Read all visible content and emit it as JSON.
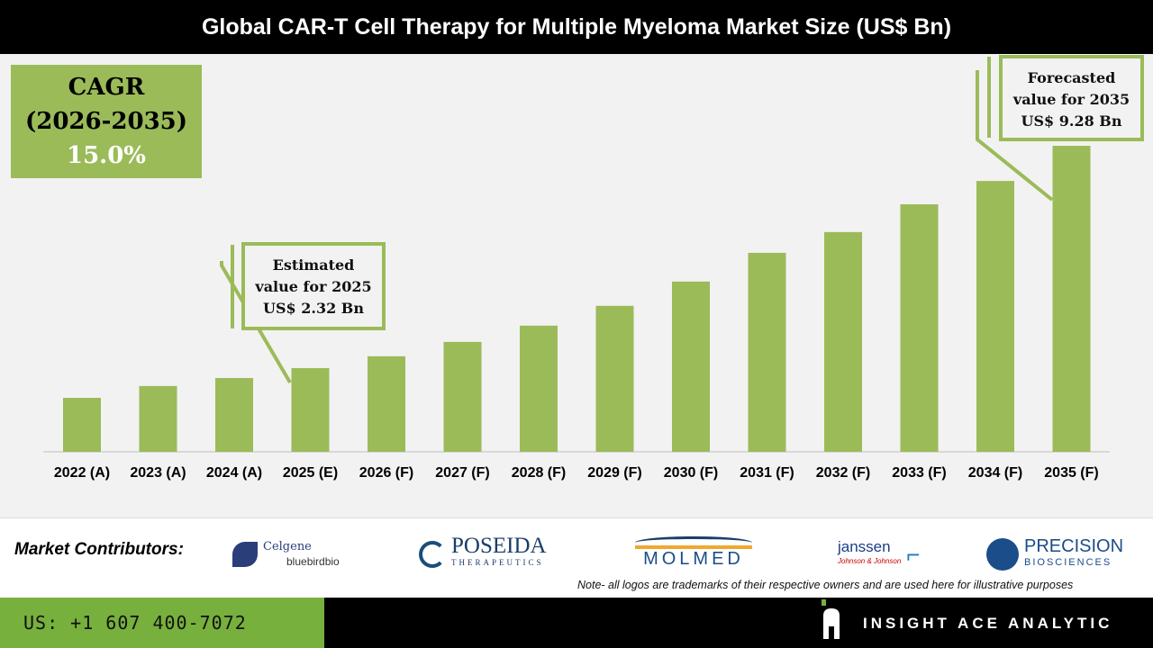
{
  "title": "Global CAR-T Cell Therapy for Multiple Myeloma Market Size (US$ Bn)",
  "cagr": {
    "line1": "CAGR",
    "line2": "(2026-2035)",
    "value": "15.0%"
  },
  "callouts": {
    "estimated": [
      "Estimated",
      "value for 2025",
      "US$ 2.32 Bn"
    ],
    "forecasted": [
      "Forecasted",
      "value for 2035",
      "US$ 9.28 Bn"
    ]
  },
  "chart_data": {
    "type": "bar",
    "title": "Global CAR-T Cell Therapy for Multiple Myeloma Market Size (US$ Bn)",
    "categories": [
      "2022 (A)",
      "2023 (A)",
      "2024 (A)",
      "2025 (E)",
      "2026 (F)",
      "2027 (F)",
      "2028 (F)",
      "2029 (F)",
      "2030 (F)",
      "2031 (F)",
      "2032 (F)",
      "2033 (F)",
      "2034 (F)",
      "2035 (F)"
    ],
    "values": [
      1.39,
      1.76,
      2.01,
      2.32,
      2.69,
      3.14,
      3.65,
      4.27,
      5.03,
      5.93,
      6.58,
      7.45,
      8.18,
      9.28
    ],
    "xlabel": "",
    "ylabel": "",
    "grid": false,
    "color": "#9bbb59"
  },
  "contributors": {
    "label": "Market Contributors:",
    "logos": [
      {
        "name": "Celgene",
        "sub": "bluebirdbio"
      },
      {
        "name": "POSEIDA",
        "sub": "THERAPEUTICS"
      },
      {
        "name": "MOLMED",
        "sub": ""
      },
      {
        "name": "janssen",
        "sub": "Johnson & Johnson"
      },
      {
        "name": "PRECISION",
        "sub": "BIOSCIENCES"
      }
    ],
    "note": "Note- all logos are trademarks of their respective owners and are used here for illustrative purposes"
  },
  "footer": {
    "phone": "US: +1 607 400-7072",
    "brand": "INSIGHT ACE ANALYTIC"
  },
  "colors": {
    "accent": "#9bbb59",
    "footer_green": "#77b03d"
  }
}
